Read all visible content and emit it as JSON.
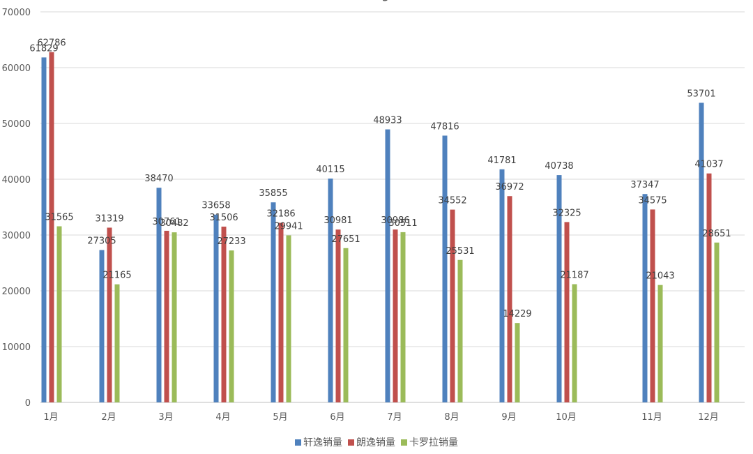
{
  "chart_data": {
    "type": "bar",
    "title": "",
    "xlabel": "",
    "ylabel": "",
    "ylim": [
      0,
      70000
    ],
    "yticks": [
      "0",
      "10000",
      "20000",
      "30000",
      "40000",
      "50000",
      "60000",
      "70000"
    ],
    "ytick_values": [
      0,
      10000,
      20000,
      30000,
      40000,
      50000,
      60000,
      70000
    ],
    "categories": [
      "1月",
      "2月",
      "3月",
      "4月",
      "5月",
      "6月",
      "7月",
      "8月",
      "9月",
      "10月",
      "11月",
      "12月"
    ],
    "grid": true,
    "legend_position": "bottom",
    "series": [
      {
        "name": "轩逸销量",
        "color": "#4f81bd",
        "values": [
          61829,
          27305,
          38470,
          33658,
          35855,
          40115,
          48933,
          47816,
          41781,
          40738,
          37347,
          53701
        ]
      },
      {
        "name": "朗逸销量",
        "color": "#c0504d",
        "values": [
          62786,
          31319,
          30761,
          31506,
          32186,
          30981,
          30986,
          34552,
          36972,
          32325,
          34575,
          41037
        ]
      },
      {
        "name": "卡罗拉销量",
        "color": "#9bbb59",
        "values": [
          31565,
          21165,
          30482,
          27233,
          29941,
          27651,
          30511,
          25531,
          14229,
          21187,
          21043,
          28651
        ]
      }
    ]
  }
}
